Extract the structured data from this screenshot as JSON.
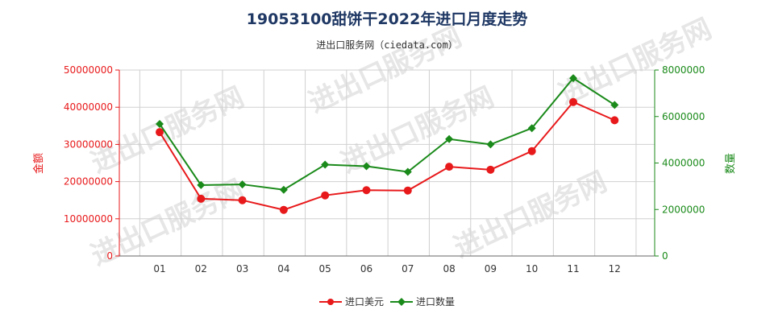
{
  "chart_data": {
    "type": "line",
    "title": "19053100甜饼干2022年进口月度走势",
    "subtitle": "进出口服务网（ciedata.com）",
    "watermark": "进出口服务网",
    "categories": [
      "01",
      "02",
      "03",
      "04",
      "05",
      "06",
      "07",
      "08",
      "09",
      "10",
      "11",
      "12"
    ],
    "y_left": {
      "label": "金额",
      "ylim": [
        0,
        50000000
      ],
      "ticks": [
        "0",
        "10000000",
        "20000000",
        "30000000",
        "40000000",
        "50000000"
      ],
      "tick_values": [
        0,
        10000000,
        20000000,
        30000000,
        40000000,
        50000000
      ]
    },
    "y_right": {
      "label": "数量",
      "ylim": [
        0,
        8000000
      ],
      "ticks": [
        "0",
        "2000000",
        "4000000",
        "6000000",
        "8000000"
      ],
      "tick_values": [
        0,
        2000000,
        4000000,
        6000000,
        8000000
      ]
    },
    "series": [
      {
        "name": "进口美元",
        "axis": "left",
        "color": "#e8191b",
        "marker": "circle",
        "values": [
          33300000,
          15400000,
          15000000,
          12400000,
          16300000,
          17700000,
          17600000,
          24000000,
          23200000,
          28200000,
          41400000,
          36500000
        ]
      },
      {
        "name": "进口数量",
        "axis": "right",
        "color": "#1a8a1a",
        "marker": "diamond",
        "values": [
          5680000,
          3050000,
          3080000,
          2850000,
          3930000,
          3860000,
          3620000,
          5030000,
          4800000,
          5500000,
          7650000,
          6500000
        ]
      }
    ],
    "grid": true,
    "legend_position": "bottom-center"
  }
}
